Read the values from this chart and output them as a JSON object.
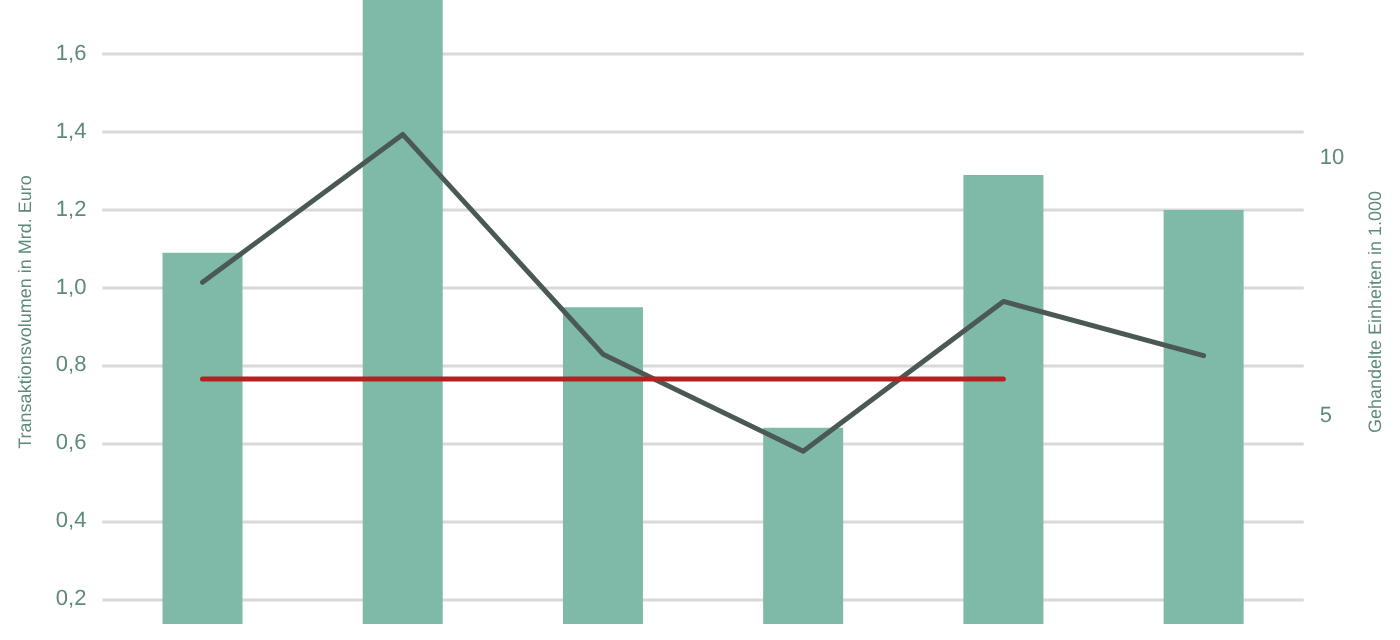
{
  "chart_data": {
    "type": "bar",
    "ylabel": "Transaktionsvolumen in Mrd. Euro",
    "y2label": "Gehandelte Einheiten in 1.000",
    "categories": [
      null,
      null,
      null,
      null,
      null,
      null
    ],
    "series": [
      {
        "color": "#7fbaa9",
        "values": [
          1.09,
          1.74,
          0.95,
          0.64,
          1.29,
          1.2
        ]
      },
      {
        "type": "line",
        "axis": "y2",
        "color": "#4b5955",
        "values": [
          7.59,
          10.45,
          6.2,
          4.32,
          7.22,
          6.17
        ]
      },
      {
        "type": "line",
        "color": "#b22222",
        "values": [
          0.765,
          0.765,
          0.765,
          0.765,
          0.765,
          null
        ]
      }
    ],
    "ylim": [
      0.135,
      1.74
    ],
    "yticks": [
      {
        "value": 0.2,
        "label": "0,2"
      },
      {
        "value": 0.4,
        "label": "0,4"
      },
      {
        "value": 0.6,
        "label": "0,6"
      },
      {
        "value": 0.8,
        "label": "0,8"
      },
      {
        "value": 1.0,
        "label": "1,0"
      },
      {
        "value": 1.2,
        "label": "1,2"
      },
      {
        "value": 1.4,
        "label": "1,4"
      },
      {
        "value": 1.6,
        "label": "1,6"
      }
    ],
    "y2lim": [
      0.98,
      13.05
    ],
    "y2ticks": [
      5,
      10
    ],
    "grid": "y",
    "marker": "none",
    "line_style": "solid"
  }
}
